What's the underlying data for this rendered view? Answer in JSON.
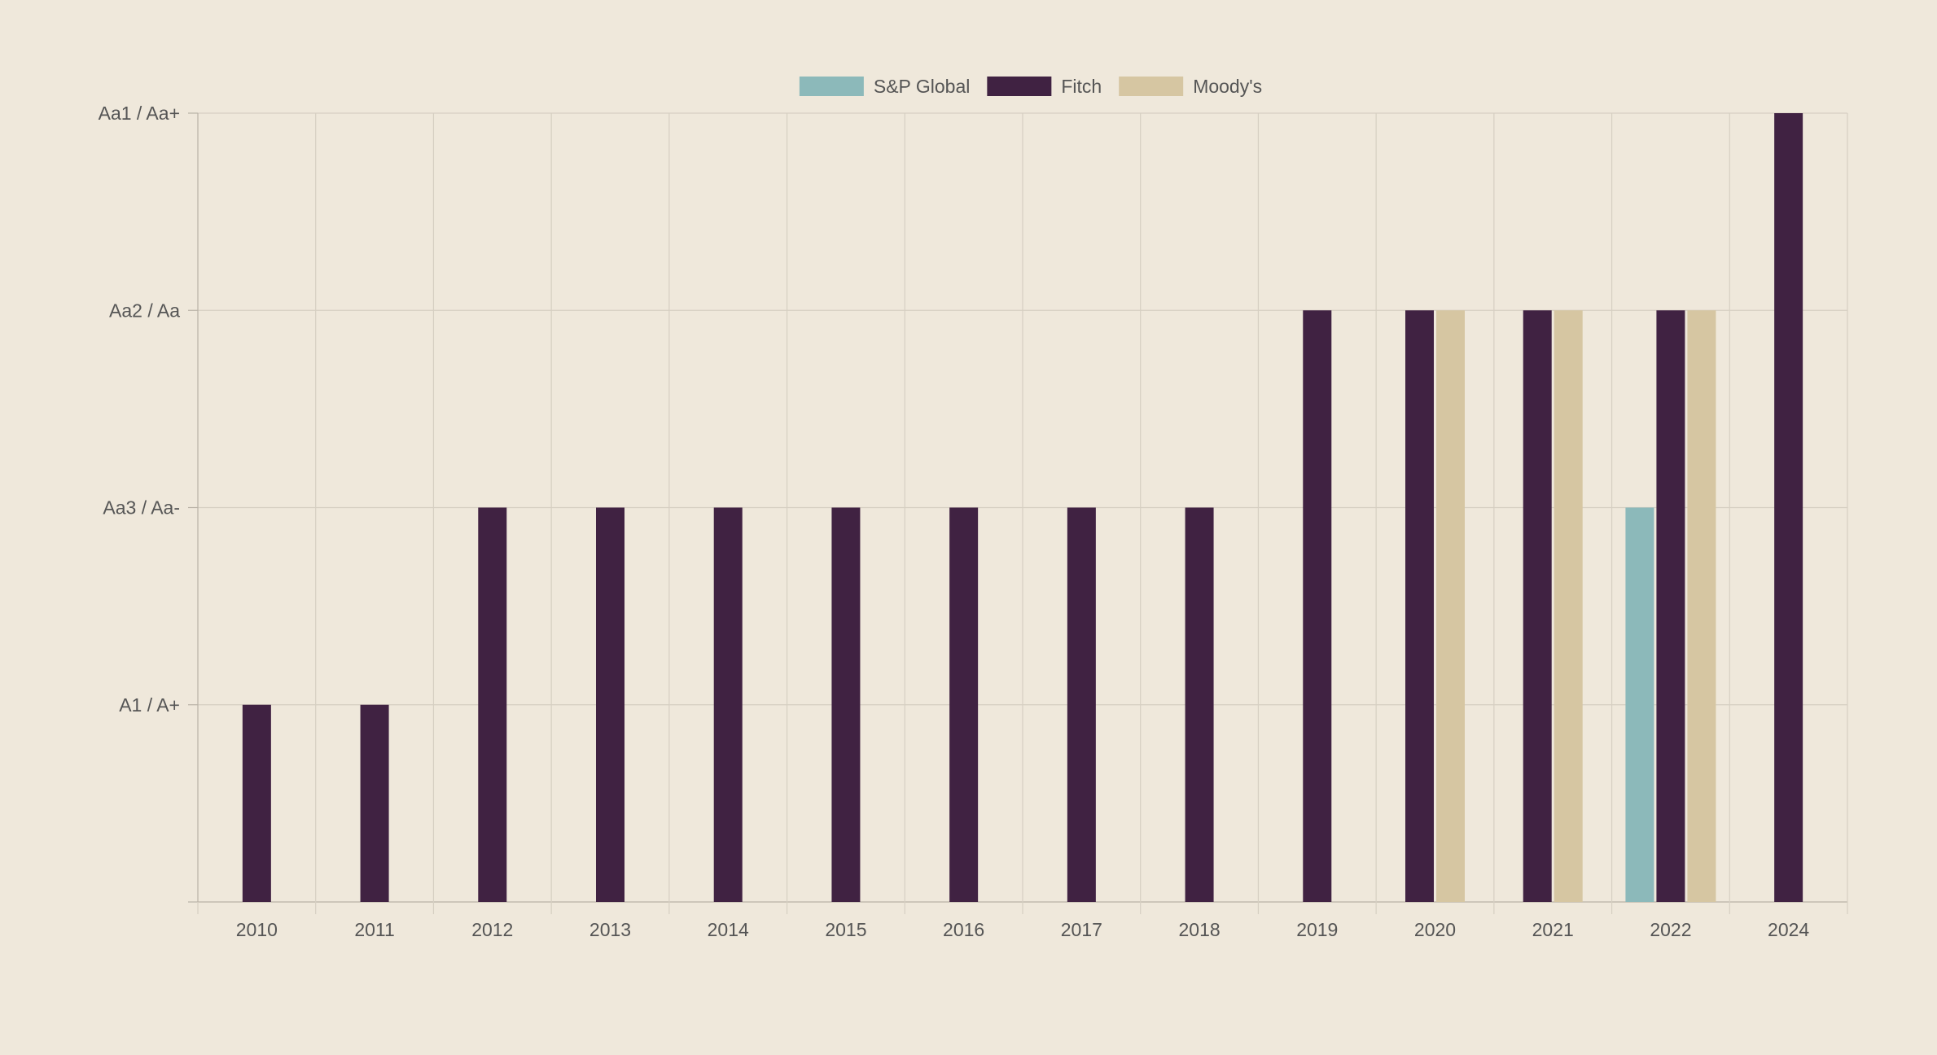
{
  "colors": {
    "background": "#efe8db",
    "grid": "#d6cfc2",
    "axis": "#b9b2a6",
    "text": "#555555"
  },
  "chart_data": {
    "type": "bar",
    "categories": [
      "2010",
      "2011",
      "2012",
      "2013",
      "2014",
      "2015",
      "2016",
      "2017",
      "2018",
      "2019",
      "2020",
      "2021",
      "2022",
      "2024"
    ],
    "y_ticks": [
      {
        "value": 0,
        "label": ""
      },
      {
        "value": 1,
        "label": "A1 / A+"
      },
      {
        "value": 2,
        "label": "Aa3 / Aa-"
      },
      {
        "value": 3,
        "label": "Aa2 / Aa"
      },
      {
        "value": 4,
        "label": "Aa1 / Aa+"
      }
    ],
    "ylim": [
      0,
      4
    ],
    "grid": true,
    "legend_position": "top-center",
    "series": [
      {
        "name": "S&P Global",
        "color": "#8cb9ba",
        "values": [
          null,
          null,
          null,
          null,
          null,
          null,
          null,
          null,
          null,
          null,
          null,
          null,
          2,
          null
        ]
      },
      {
        "name": "Fitch",
        "color": "#402242",
        "values": [
          1,
          1,
          2,
          2,
          2,
          2,
          2,
          2,
          2,
          3,
          3,
          3,
          3,
          4
        ]
      },
      {
        "name": "Moody's",
        "color": "#d6c6a2",
        "values": [
          null,
          null,
          null,
          null,
          null,
          null,
          null,
          null,
          null,
          null,
          3,
          3,
          3,
          null
        ]
      }
    ]
  }
}
